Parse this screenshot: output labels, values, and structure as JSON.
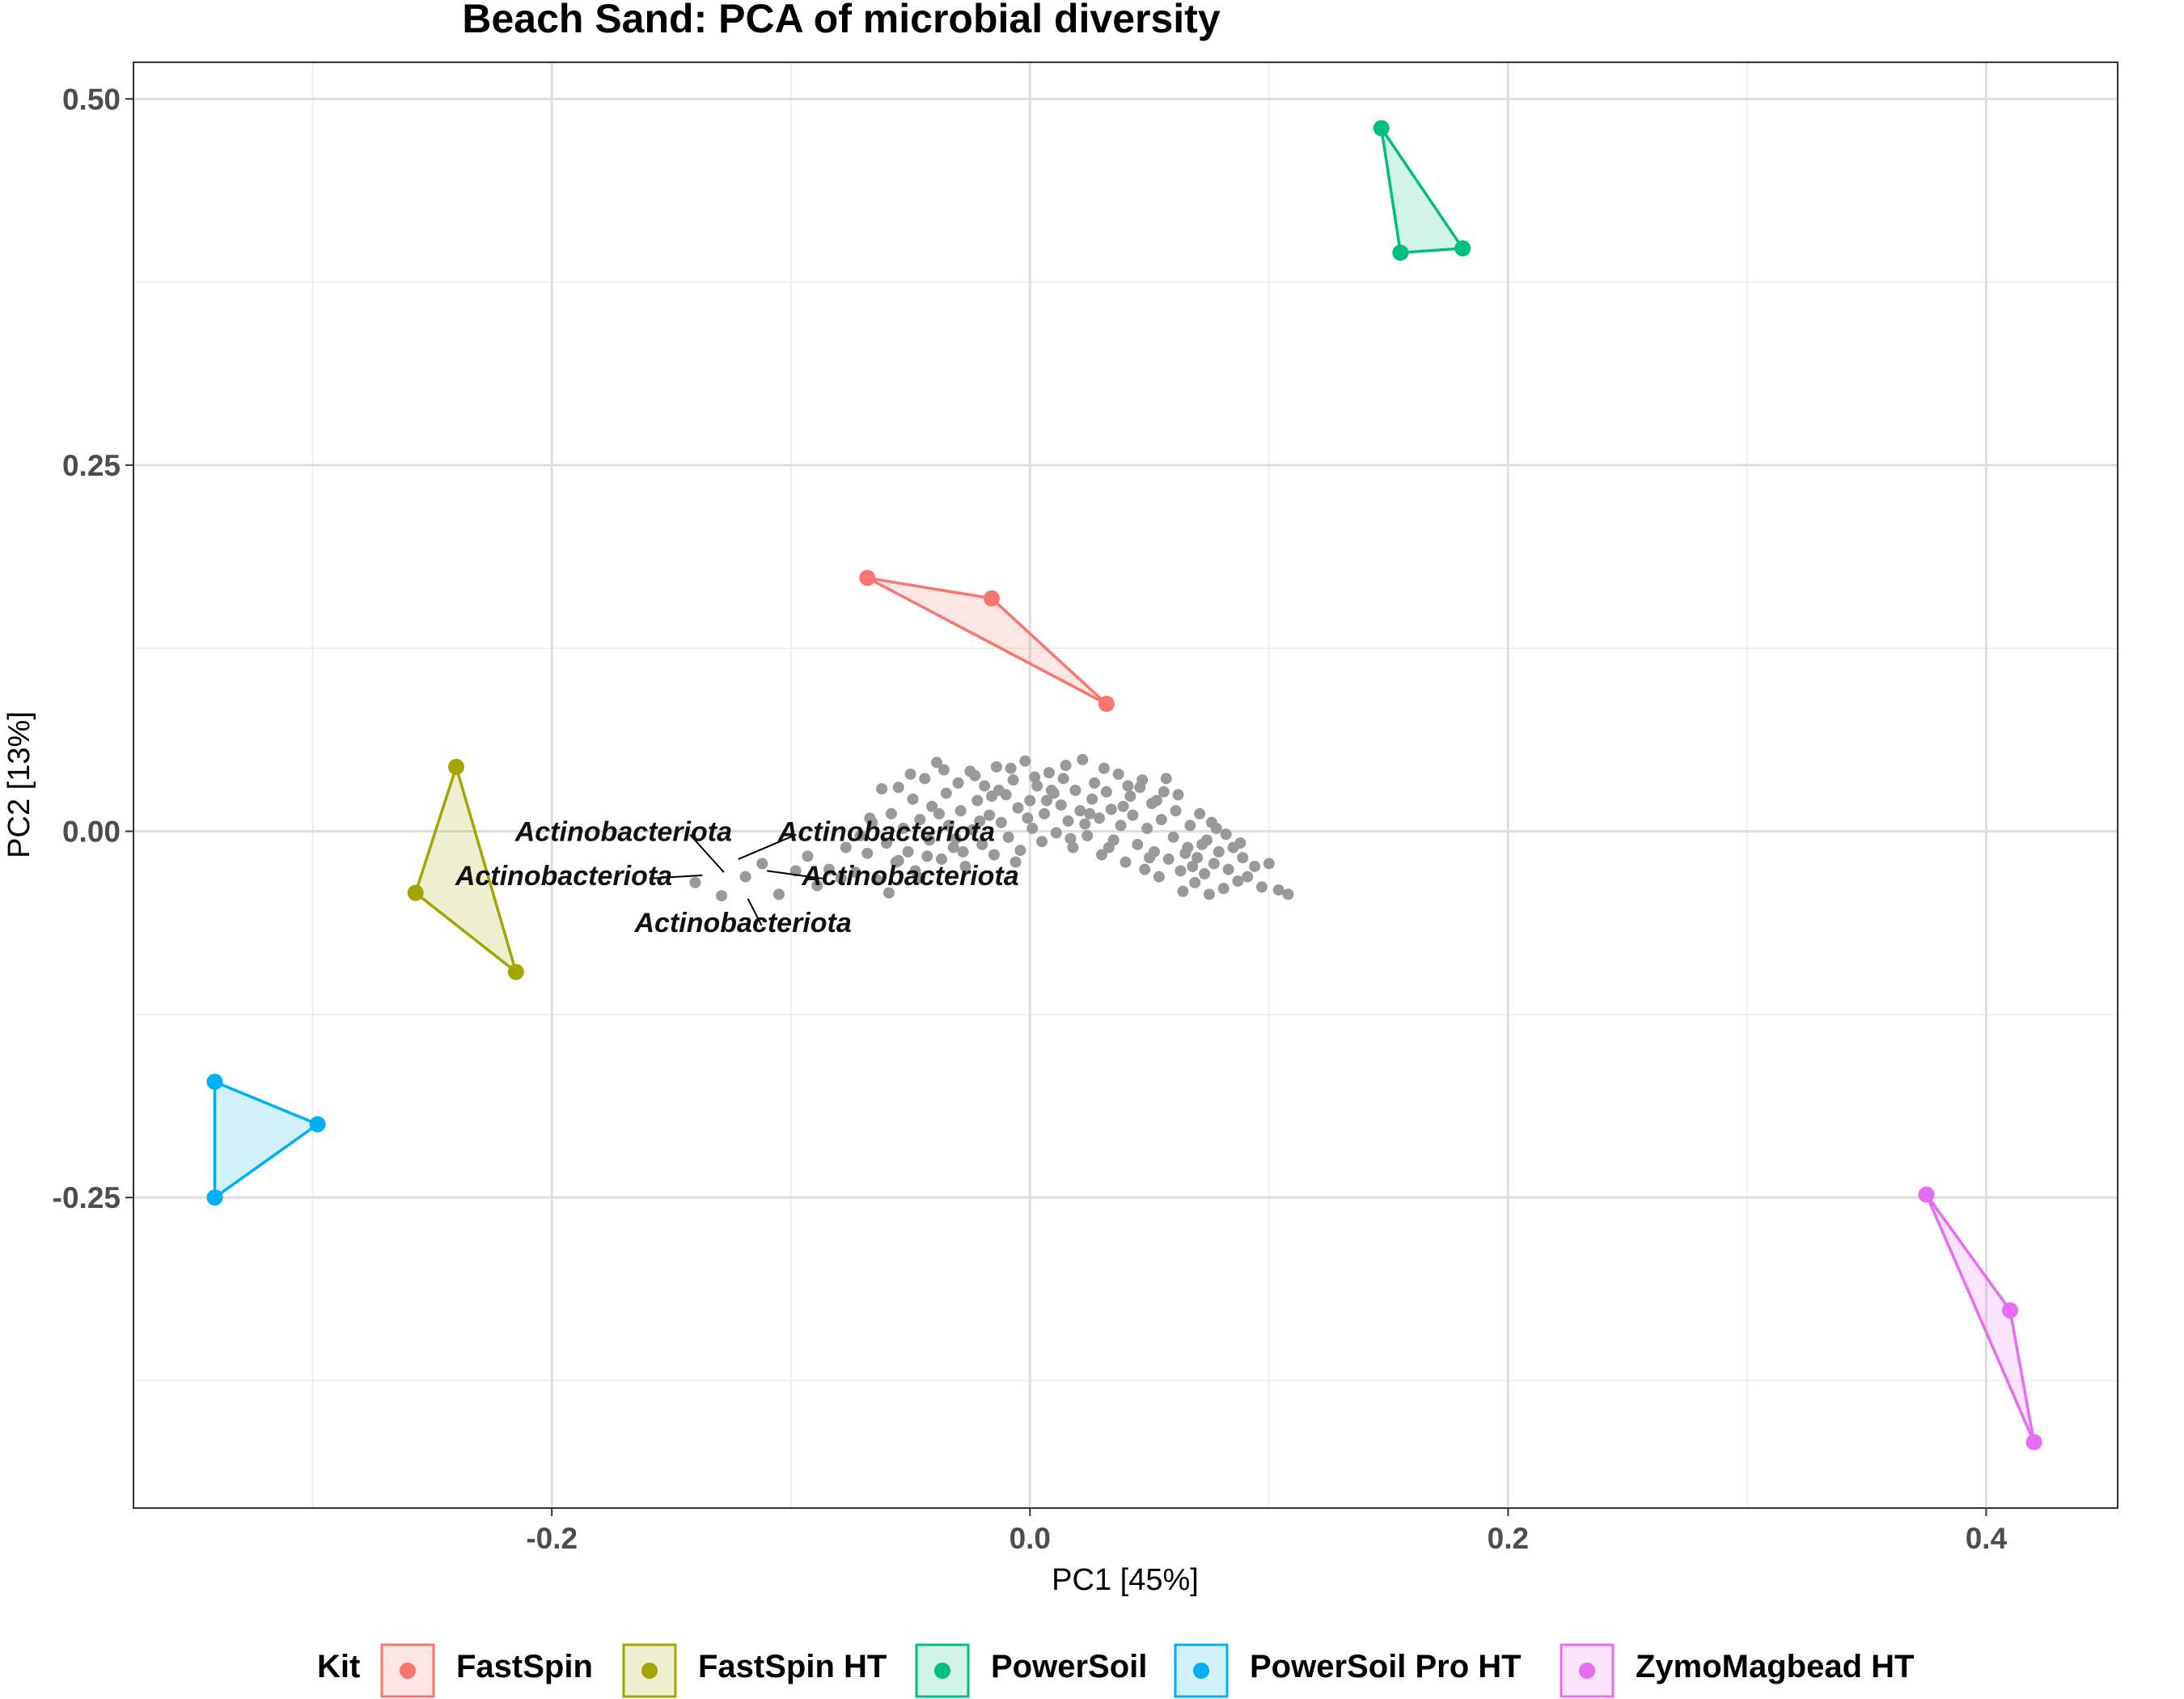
{
  "chart_data": {
    "type": "scatter",
    "title": "Beach Sand: PCA of microbial diversity",
    "xlabel": "PC1 [45%]",
    "ylabel": "PC2 [13%]",
    "xlim": [
      -0.375,
      0.455
    ],
    "ylim": [
      -0.462,
      0.525
    ],
    "x_ticks": [
      -0.2,
      0.0,
      0.2,
      0.4
    ],
    "x_tick_labels": [
      "-0.2",
      "0.0",
      "0.2",
      "0.4"
    ],
    "y_ticks": [
      -0.25,
      0.0,
      0.25,
      0.5
    ],
    "y_tick_labels": [
      "-0.25",
      "0.00",
      "0.25",
      "0.50"
    ],
    "x_minor": [
      -0.3,
      -0.1,
      0.1,
      0.3
    ],
    "y_minor": [
      -0.375,
      -0.125,
      0.125,
      0.375
    ],
    "grid": true,
    "legend": {
      "title": "Kit",
      "position": "bottom"
    },
    "series": [
      {
        "name": "FastSpin",
        "color": "#F8766D",
        "points": [
          [
            -0.068,
            0.173
          ],
          [
            -0.016,
            0.159
          ],
          [
            0.032,
            0.087
          ]
        ]
      },
      {
        "name": "FastSpin HT",
        "color": "#A3A500",
        "points": [
          [
            -0.24,
            0.044
          ],
          [
            -0.257,
            -0.042
          ],
          [
            -0.215,
            -0.096
          ]
        ]
      },
      {
        "name": "PowerSoil",
        "color": "#00BF7D",
        "points": [
          [
            0.147,
            0.48
          ],
          [
            0.155,
            0.395
          ],
          [
            0.181,
            0.398
          ]
        ]
      },
      {
        "name": "PowerSoil Pro HT",
        "color": "#00B0F6",
        "points": [
          [
            -0.341,
            -0.171
          ],
          [
            -0.298,
            -0.2
          ],
          [
            -0.341,
            -0.25
          ]
        ]
      },
      {
        "name": "ZymoMagbead HT",
        "color": "#E76BF3",
        "points": [
          [
            0.375,
            -0.248
          ],
          [
            0.41,
            -0.327
          ],
          [
            0.42,
            -0.417
          ]
        ]
      }
    ],
    "taxa_points_color": "#999999",
    "taxa_points": [
      [
        -0.14,
        -0.035
      ],
      [
        -0.129,
        -0.044
      ],
      [
        -0.119,
        -0.031
      ],
      [
        -0.112,
        -0.022
      ],
      [
        -0.105,
        -0.043
      ],
      [
        -0.098,
        -0.027
      ],
      [
        -0.093,
        -0.017
      ],
      [
        -0.089,
        -0.037
      ],
      [
        -0.084,
        -0.026
      ],
      [
        -0.079,
        -0.032
      ],
      [
        -0.077,
        -0.011
      ],
      [
        -0.073,
        -0.028
      ],
      [
        -0.071,
        -0.003
      ],
      [
        -0.068,
        -0.015
      ],
      [
        -0.066,
        0.006
      ],
      [
        -0.064,
        -0.033
      ],
      [
        -0.062,
        0.029
      ],
      [
        -0.06,
        -0.008
      ],
      [
        -0.058,
        0.012
      ],
      [
        -0.056,
        -0.021
      ],
      [
        -0.055,
        0.03
      ],
      [
        -0.053,
        0.002
      ],
      [
        -0.051,
        -0.014
      ],
      [
        -0.049,
        0.022
      ],
      [
        -0.048,
        -0.027
      ],
      [
        -0.046,
        0.008
      ],
      [
        -0.044,
        0.036
      ],
      [
        -0.042,
        -0.006
      ],
      [
        -0.041,
        0.017
      ],
      [
        -0.039,
        0.047
      ],
      [
        -0.037,
        -0.019
      ],
      [
        -0.035,
        0.026
      ],
      [
        -0.034,
        0.004
      ],
      [
        -0.032,
        -0.011
      ],
      [
        -0.03,
        0.033
      ],
      [
        -0.029,
        0.014
      ],
      [
        -0.027,
        -0.024
      ],
      [
        -0.025,
        0.041
      ],
      [
        -0.024,
        0.001
      ],
      [
        -0.022,
        0.021
      ],
      [
        -0.02,
        -0.009
      ],
      [
        -0.019,
        0.031
      ],
      [
        -0.017,
        0.011
      ],
      [
        -0.015,
        -0.016
      ],
      [
        -0.014,
        0.044
      ],
      [
        -0.012,
        0.006
      ],
      [
        -0.01,
        0.025
      ],
      [
        -0.009,
        -0.004
      ],
      [
        -0.007,
        0.035
      ],
      [
        -0.005,
        0.016
      ],
      [
        -0.004,
        -0.013
      ],
      [
        -0.002,
        0.048
      ],
      [
        0.0,
        0.021
      ],
      [
        0.001,
        0.002
      ],
      [
        0.003,
        0.031
      ],
      [
        0.005,
        -0.007
      ],
      [
        0.006,
        0.012
      ],
      [
        0.008,
        0.04
      ],
      [
        0.01,
        0.026
      ],
      [
        0.011,
        -0.001
      ],
      [
        0.013,
        0.018
      ],
      [
        0.014,
        0.036
      ],
      [
        0.016,
        0.007
      ],
      [
        0.018,
        -0.011
      ],
      [
        0.019,
        0.028
      ],
      [
        0.021,
        0.014
      ],
      [
        0.022,
        0.049
      ],
      [
        0.024,
        -0.003
      ],
      [
        0.026,
        0.022
      ],
      [
        0.027,
        0.033
      ],
      [
        0.029,
        0.009
      ],
      [
        0.03,
        -0.016
      ],
      [
        0.032,
        0.027
      ],
      [
        0.034,
        0.015
      ],
      [
        0.035,
        -0.006
      ],
      [
        0.037,
        0.039
      ],
      [
        0.038,
        0.004
      ],
      [
        0.04,
        -0.021
      ],
      [
        0.042,
        0.024
      ],
      [
        0.043,
        0.011
      ],
      [
        0.045,
        -0.009
      ],
      [
        0.046,
        0.03
      ],
      [
        0.048,
        -0.026
      ],
      [
        0.049,
        0.002
      ],
      [
        0.051,
        0.019
      ],
      [
        0.052,
        -0.014
      ],
      [
        0.054,
        -0.031
      ],
      [
        0.055,
        0.008
      ],
      [
        0.057,
        0.036
      ],
      [
        0.058,
        -0.019
      ],
      [
        0.06,
        -0.004
      ],
      [
        0.061,
        0.014
      ],
      [
        0.063,
        -0.027
      ],
      [
        0.064,
        -0.041
      ],
      [
        0.066,
        -0.011
      ],
      [
        0.067,
        0.004
      ],
      [
        0.069,
        -0.035
      ],
      [
        0.07,
        -0.018
      ],
      [
        0.071,
        0.012
      ],
      [
        0.073,
        -0.029
      ],
      [
        0.074,
        -0.006
      ],
      [
        0.075,
        -0.043
      ],
      [
        0.077,
        -0.022
      ],
      [
        0.079,
        -0.014
      ],
      [
        0.081,
        -0.039
      ],
      [
        0.083,
        -0.026
      ],
      [
        0.085,
        -0.011
      ],
      [
        0.087,
        -0.034
      ],
      [
        0.089,
        -0.018
      ],
      [
        0.091,
        -0.031
      ],
      [
        0.094,
        -0.024
      ],
      [
        0.097,
        -0.038
      ],
      [
        0.1,
        -0.022
      ],
      [
        0.104,
        -0.04
      ],
      [
        0.108,
        -0.043
      ],
      [
        -0.055,
        -0.02
      ],
      [
        -0.046,
        -0.032
      ],
      [
        -0.038,
        0.012
      ],
      [
        -0.031,
        -0.005
      ],
      [
        -0.023,
        0.038
      ],
      [
        -0.016,
        0.024
      ],
      [
        -0.008,
        0.043
      ],
      [
        -0.001,
        0.009
      ],
      [
        0.007,
        0.021
      ],
      [
        0.015,
        0.045
      ],
      [
        0.023,
        0.005
      ],
      [
        0.031,
        0.043
      ],
      [
        0.039,
        0.017
      ],
      [
        0.047,
        0.035
      ],
      [
        0.053,
        0.021
      ],
      [
        0.062,
        0.025
      ],
      [
        0.068,
        -0.024
      ],
      [
        0.076,
        0.006
      ],
      [
        0.082,
        -0.002
      ],
      [
        0.088,
        -0.008
      ],
      [
        -0.067,
        0.009
      ],
      [
        -0.059,
        -0.042
      ],
      [
        -0.05,
        0.039
      ],
      [
        -0.043,
        -0.017
      ],
      [
        -0.036,
        0.042
      ],
      [
        -0.028,
        -0.014
      ],
      [
        -0.021,
        0.007
      ],
      [
        -0.013,
        0.028
      ],
      [
        -0.006,
        -0.021
      ],
      [
        0.002,
        0.037
      ],
      [
        0.009,
        0.028
      ],
      [
        0.017,
        -0.005
      ],
      [
        0.025,
        0.012
      ],
      [
        0.033,
        -0.011
      ],
      [
        0.041,
        0.031
      ],
      [
        0.05,
        -0.018
      ],
      [
        0.056,
        0.027
      ],
      [
        0.065,
        -0.015
      ],
      [
        0.072,
        -0.009
      ],
      [
        0.078,
        0.002
      ]
    ],
    "annotations": [
      {
        "text": "Actinobacteriota",
        "pos": [
          -0.128,
          -0.028
        ],
        "label": [
          -0.17,
          0.0
        ]
      },
      {
        "text": "Actinobacteriota",
        "pos": [
          -0.122,
          -0.019
        ],
        "label": [
          -0.06,
          0.0
        ]
      },
      {
        "text": "Actinobacteriota",
        "pos": [
          -0.137,
          -0.03
        ],
        "label": [
          -0.195,
          -0.03
        ]
      },
      {
        "text": "Actinobacteriota",
        "pos": [
          -0.11,
          -0.027
        ],
        "label": [
          -0.05,
          -0.03
        ]
      },
      {
        "text": "Actinobacteriota",
        "pos": [
          -0.118,
          -0.046
        ],
        "label": [
          -0.12,
          -0.062
        ]
      }
    ]
  }
}
